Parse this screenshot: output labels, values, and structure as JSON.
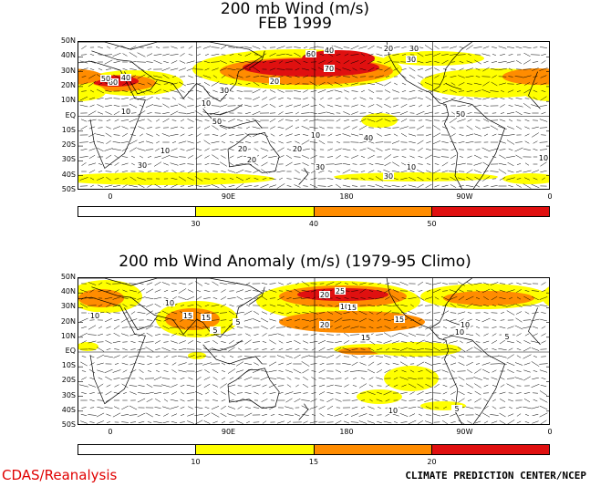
{
  "panel1": {
    "title_line1": "200 mb Wind (m/s)",
    "title_line2": "FEB 1999",
    "lat_labels": [
      "50N",
      "40N",
      "30N",
      "20N",
      "10N",
      "EQ",
      "10S",
      "20S",
      "30S",
      "40S",
      "50S"
    ],
    "lon_labels": [
      "0",
      "90E",
      "180",
      "90W",
      "0"
    ],
    "colorbar": {
      "colors": [
        "#ffffff",
        "#ffff00",
        "#ff8c00",
        "#e01010"
      ],
      "labels": [
        "30",
        "40",
        "50"
      ]
    },
    "contour_labels": [
      "60",
      "40",
      "50",
      "50",
      "70",
      "60",
      "40",
      "30",
      "20",
      "30",
      "20",
      "40",
      "30",
      "50",
      "10",
      "10",
      "20",
      "10",
      "20",
      "30",
      "10",
      "10",
      "20",
      "30",
      "10",
      "30"
    ]
  },
  "panel2": {
    "title": "200 mb Wind Anomaly (m/s) (1979-95 Climo)",
    "lat_labels": [
      "50N",
      "40N",
      "30N",
      "20N",
      "10N",
      "EQ",
      "10S",
      "20S",
      "30S",
      "40S",
      "50S"
    ],
    "lon_labels": [
      "0",
      "90E",
      "180",
      "90W",
      "0"
    ],
    "colorbar": {
      "colors": [
        "#ffffff",
        "#ffff00",
        "#ff8c00",
        "#e01010"
      ],
      "labels": [
        "10",
        "15",
        "20"
      ]
    },
    "contour_labels": [
      "10",
      "15",
      "15",
      "20",
      "25",
      "10",
      "15",
      "20",
      "15",
      "15",
      "10",
      "10",
      "10",
      "5",
      "5",
      "5",
      "10",
      "5"
    ]
  },
  "footer": {
    "left": "CDAS/Reanalysis",
    "right": "CLIMATE PREDICTION CENTER/NCEP"
  }
}
